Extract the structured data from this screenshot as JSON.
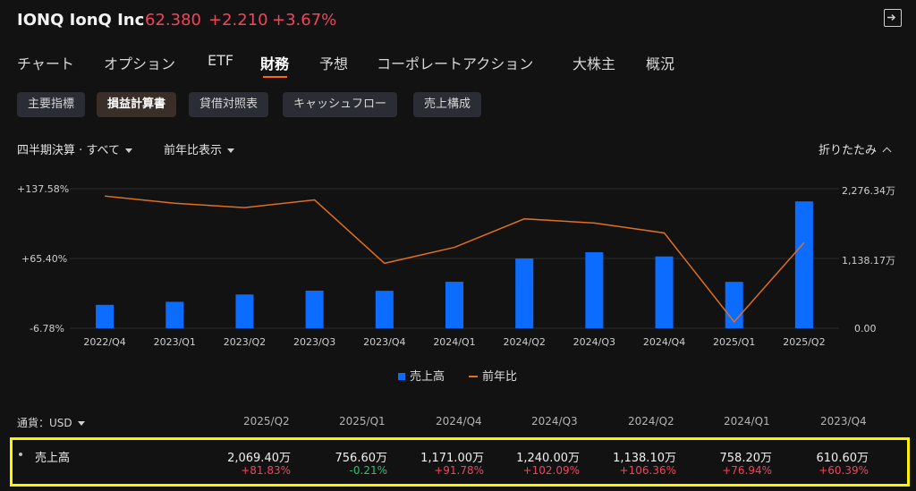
{
  "header": {
    "ticker": "IONQ IonQ Inc",
    "price": "62.380",
    "change": "+2.210",
    "change_pct": "+3.67%",
    "exit_icon": "exit-icon"
  },
  "nav": {
    "items": [
      "チャート",
      "オプション",
      "ETF",
      "財務",
      "予想",
      "コーポレートアクション",
      "大株主",
      "概況"
    ],
    "active": "財務"
  },
  "subtabs": {
    "items": [
      "主要指標",
      "損益計算書",
      "貸借対照表",
      "キャッシュフロー",
      "売上構成"
    ],
    "active": "損益計算書"
  },
  "filters": {
    "period": "四半期決算 · すべて",
    "yoy": "前年比表示",
    "collapse": "折りたたみ"
  },
  "chart_data": {
    "type": "bar+line",
    "categories": [
      "2022/Q4",
      "2023/Q1",
      "2023/Q2",
      "2023/Q3",
      "2023/Q4",
      "2024/Q1",
      "2024/Q2",
      "2024/Q3",
      "2024/Q4",
      "2025/Q1",
      "2025/Q2"
    ],
    "left_axis_ticks": [
      "+137.58%",
      "+65.40%",
      "-6.78%"
    ],
    "right_axis_ticks": [
      "2,276.34万",
      "1,138.17万",
      "0.00"
    ],
    "left_ylim": [
      -6.78,
      137.58
    ],
    "right_ylim": [
      0,
      2276.34
    ],
    "series": [
      {
        "name": "売上高",
        "kind": "bar",
        "color": "#0b6cff",
        "values": [
          381.6,
          431.0,
          550.0,
          613.0,
          610.6,
          758.2,
          1138.1,
          1240.0,
          1171.0,
          756.6,
          2069.4
        ]
      },
      {
        "name": "前年比",
        "kind": "line",
        "color": "#e0701c",
        "values": [
          130.0,
          122.5,
          118.0,
          126.0,
          60.4,
          76.9,
          106.4,
          102.1,
          91.8,
          -0.2,
          81.8
        ]
      }
    ],
    "grid": true,
    "legend": "bottom-center"
  },
  "table": {
    "currency_label": "通貨：USD",
    "columns": [
      "2025/Q2",
      "2025/Q1",
      "2024/Q4",
      "2024/Q3",
      "2024/Q2",
      "2024/Q1",
      "2023/Q4"
    ],
    "row": {
      "label": "売上高",
      "values": [
        "2,069.40万",
        "756.60万",
        "1,171.00万",
        "1,240.00万",
        "1,138.10万",
        "758.20万",
        "610.60万"
      ],
      "pcts": [
        "+81.83%",
        "-0.21%",
        "+91.78%",
        "+102.09%",
        "+106.36%",
        "+76.94%",
        "+60.39%"
      ]
    }
  }
}
